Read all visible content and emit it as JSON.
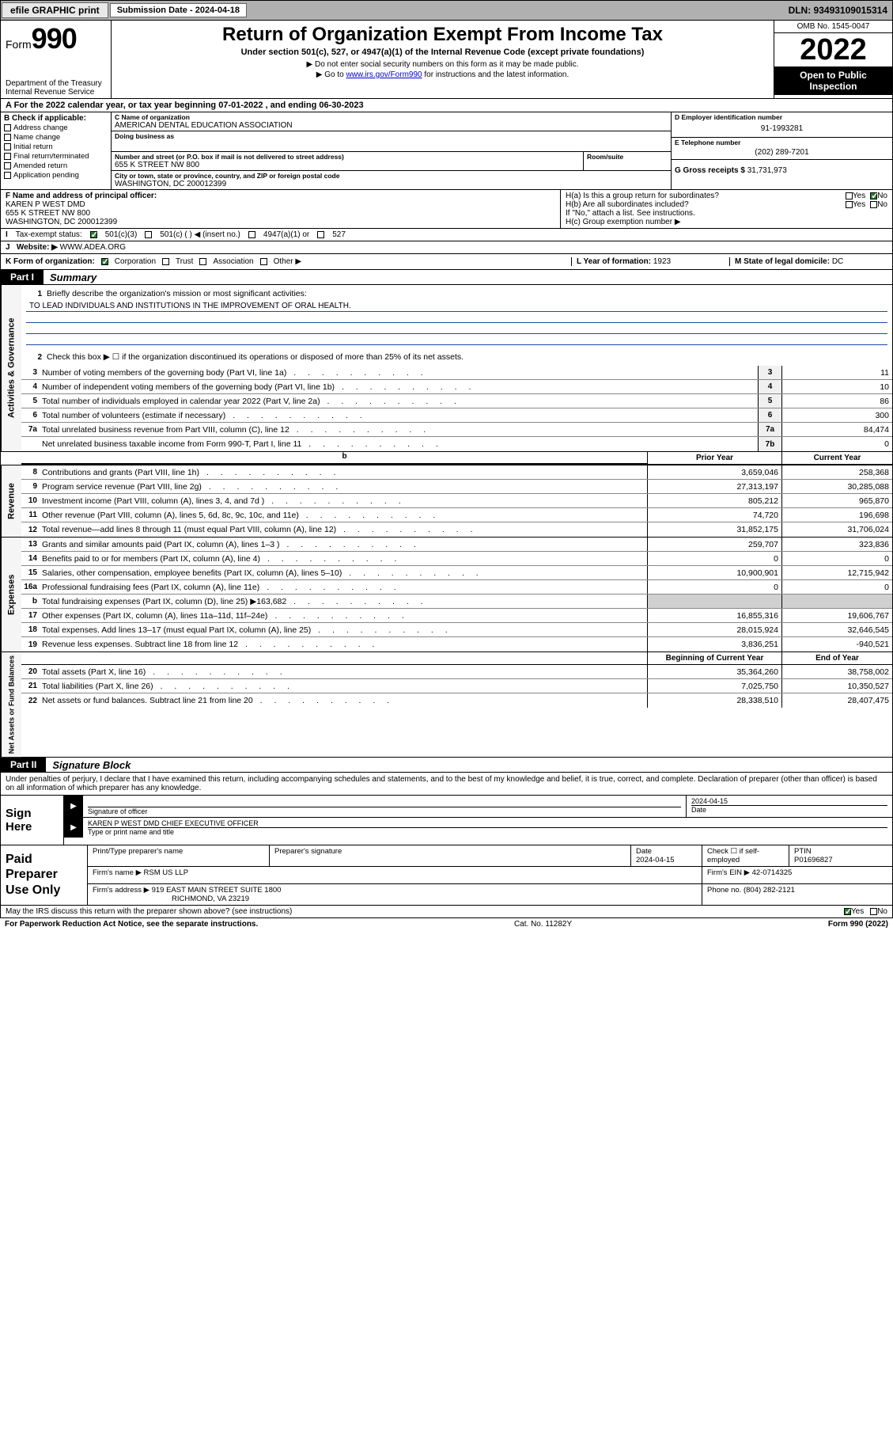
{
  "topbar": {
    "efile": "efile GRAPHIC print",
    "submission_label": "Submission Date - 2024-04-18",
    "dln": "DLN: 93493109015314"
  },
  "header": {
    "form_word": "Form",
    "form_num": "990",
    "dept": "Department of the Treasury",
    "irs": "Internal Revenue Service",
    "title": "Return of Organization Exempt From Income Tax",
    "sub1": "Under section 501(c), 527, or 4947(a)(1) of the Internal Revenue Code (except private foundations)",
    "sub2": "▶ Do not enter social security numbers on this form as it may be made public.",
    "sub3_pre": "▶ Go to ",
    "sub3_link": "www.irs.gov/Form990",
    "sub3_post": " for instructions and the latest information.",
    "omb": "OMB No. 1545-0047",
    "year": "2022",
    "open": "Open to Public Inspection"
  },
  "lineA": "A For the 2022 calendar year, or tax year beginning 07-01-2022    , and ending 06-30-2023",
  "colB": {
    "label": "B Check if applicable:",
    "items": [
      "Address change",
      "Name change",
      "Initial return",
      "Final return/terminated",
      "Amended return",
      "Application pending"
    ]
  },
  "colC": {
    "name_lbl": "C Name of organization",
    "name": "AMERICAN DENTAL EDUCATION ASSOCIATION",
    "dba_lbl": "Doing business as",
    "dba": "",
    "addr_lbl": "Number and street (or P.O. box if mail is not delivered to street address)",
    "room_lbl": "Room/suite",
    "addr": "655 K STREET NW 800",
    "city_lbl": "City or town, state or province, country, and ZIP or foreign postal code",
    "city": "WASHINGTON, DC  200012399"
  },
  "colDE": {
    "d_lbl": "D Employer identification number",
    "ein": "91-1993281",
    "e_lbl": "E Telephone number",
    "phone": "(202) 289-7201",
    "g_lbl": "G Gross receipts $",
    "gross": "31,731,973"
  },
  "rowF": {
    "f_lbl": "F Name and address of principal officer:",
    "name": "KAREN P WEST DMD",
    "addr1": "655 K STREET NW 800",
    "addr2": "WASHINGTON, DC  200012399",
    "ha": "H(a)  Is this a group return for subordinates?",
    "hb": "H(b)  Are all subordinates included?",
    "hb_note": "If \"No,\" attach a list. See instructions.",
    "hc": "H(c)  Group exemption number ▶",
    "yes": "Yes",
    "no": "No"
  },
  "rowI": {
    "label": "Tax-exempt status:",
    "opt1": "501(c)(3)",
    "opt2": "501(c) (  ) ◀ (insert no.)",
    "opt3": "4947(a)(1) or",
    "opt4": "527"
  },
  "rowJ": {
    "label": "Website: ▶",
    "value": "WWW.ADEA.ORG"
  },
  "rowK": {
    "label": "K Form of organization:",
    "opts": [
      "Corporation",
      "Trust",
      "Association",
      "Other ▶"
    ],
    "l_label": "L Year of formation: ",
    "l_val": "1923",
    "m_label": "M State of legal domicile: ",
    "m_val": "DC"
  },
  "part1": {
    "tab": "Part I",
    "title": "Summary"
  },
  "gov": {
    "label": "Activities & Governance",
    "q1": "Briefly describe the organization's mission or most significant activities:",
    "mission": "TO LEAD INDIVIDUALS AND INSTITUTIONS IN THE IMPROVEMENT OF ORAL HEALTH.",
    "q2": "Check this box ▶ ☐ if the organization discontinued its operations or disposed of more than 25% of its net assets.",
    "rows": [
      {
        "n": "3",
        "d": "Number of voting members of the governing body (Part VI, line 1a)",
        "box": "3",
        "v": "11"
      },
      {
        "n": "4",
        "d": "Number of independent voting members of the governing body (Part VI, line 1b)",
        "box": "4",
        "v": "10"
      },
      {
        "n": "5",
        "d": "Total number of individuals employed in calendar year 2022 (Part V, line 2a)",
        "box": "5",
        "v": "86"
      },
      {
        "n": "6",
        "d": "Total number of volunteers (estimate if necessary)",
        "box": "6",
        "v": "300"
      },
      {
        "n": "7a",
        "d": "Total unrelated business revenue from Part VIII, column (C), line 12",
        "box": "7a",
        "v": "84,474"
      },
      {
        "n": "",
        "d": "Net unrelated business taxable income from Form 990-T, Part I, line 11",
        "box": "7b",
        "v": "0"
      }
    ]
  },
  "twocol_hdr": {
    "prior": "Prior Year",
    "current": "Current Year"
  },
  "rev": {
    "label": "Revenue",
    "rows": [
      {
        "n": "8",
        "d": "Contributions and grants (Part VIII, line 1h)",
        "p": "3,659,046",
        "c": "258,368"
      },
      {
        "n": "9",
        "d": "Program service revenue (Part VIII, line 2g)",
        "p": "27,313,197",
        "c": "30,285,088"
      },
      {
        "n": "10",
        "d": "Investment income (Part VIII, column (A), lines 3, 4, and 7d )",
        "p": "805,212",
        "c": "965,870"
      },
      {
        "n": "11",
        "d": "Other revenue (Part VIII, column (A), lines 5, 6d, 8c, 9c, 10c, and 11e)",
        "p": "74,720",
        "c": "196,698"
      },
      {
        "n": "12",
        "d": "Total revenue—add lines 8 through 11 (must equal Part VIII, column (A), line 12)",
        "p": "31,852,175",
        "c": "31,706,024"
      }
    ]
  },
  "exp": {
    "label": "Expenses",
    "rows": [
      {
        "n": "13",
        "d": "Grants and similar amounts paid (Part IX, column (A), lines 1–3 )",
        "p": "259,707",
        "c": "323,836"
      },
      {
        "n": "14",
        "d": "Benefits paid to or for members (Part IX, column (A), line 4)",
        "p": "0",
        "c": "0"
      },
      {
        "n": "15",
        "d": "Salaries, other compensation, employee benefits (Part IX, column (A), lines 5–10)",
        "p": "10,900,901",
        "c": "12,715,942"
      },
      {
        "n": "16a",
        "d": "Professional fundraising fees (Part IX, column (A), line 11e)",
        "p": "0",
        "c": "0"
      },
      {
        "n": "b",
        "d": "Total fundraising expenses (Part IX, column (D), line 25) ▶163,682",
        "p": "",
        "c": "",
        "gray": true
      },
      {
        "n": "17",
        "d": "Other expenses (Part IX, column (A), lines 11a–11d, 11f–24e)",
        "p": "16,855,316",
        "c": "19,606,767"
      },
      {
        "n": "18",
        "d": "Total expenses. Add lines 13–17 (must equal Part IX, column (A), line 25)",
        "p": "28,015,924",
        "c": "32,646,545"
      },
      {
        "n": "19",
        "d": "Revenue less expenses. Subtract line 18 from line 12",
        "p": "3,836,251",
        "c": "-940,521"
      }
    ]
  },
  "net_hdr": {
    "begin": "Beginning of Current Year",
    "end": "End of Year"
  },
  "net": {
    "label": "Net Assets or Fund Balances",
    "rows": [
      {
        "n": "20",
        "d": "Total assets (Part X, line 16)",
        "p": "35,364,260",
        "c": "38,758,002"
      },
      {
        "n": "21",
        "d": "Total liabilities (Part X, line 26)",
        "p": "7,025,750",
        "c": "10,350,527"
      },
      {
        "n": "22",
        "d": "Net assets or fund balances. Subtract line 21 from line 20",
        "p": "28,338,510",
        "c": "28,407,475"
      }
    ]
  },
  "part2": {
    "tab": "Part II",
    "title": "Signature Block"
  },
  "sig": {
    "intro": "Under penalties of perjury, I declare that I have examined this return, including accompanying schedules and statements, and to the best of my knowledge and belief, it is true, correct, and complete. Declaration of preparer (other than officer) is based on all information of which preparer has any knowledge.",
    "sign_here": "Sign Here",
    "sig_officer_lbl": "Signature of officer",
    "date_lbl": "Date",
    "date": "2024-04-15",
    "name_title": "KAREN P WEST DMD CHIEF EXECUTIVE OFFICER",
    "type_lbl": "Type or print name and title"
  },
  "prep": {
    "label": "Paid Preparer Use Only",
    "h1": "Print/Type preparer's name",
    "h2": "Preparer's signature",
    "h3_lbl": "Date",
    "h3": "2024-04-15",
    "h4_lbl": "Check ☐ if self-employed",
    "h5_lbl": "PTIN",
    "ptin": "P01696827",
    "firm_name_lbl": "Firm's name    ▶",
    "firm_name": "RSM US LLP",
    "firm_ein_lbl": "Firm's EIN ▶",
    "firm_ein": "42-0714325",
    "firm_addr_lbl": "Firm's address ▶",
    "firm_addr1": "919 EAST MAIN STREET SUITE 1800",
    "firm_addr2": "RICHMOND, VA  23219",
    "phone_lbl": "Phone no.",
    "phone": "(804) 282-2121"
  },
  "footer": {
    "discuss": "May the IRS discuss this return with the preparer shown above? (see instructions)",
    "yes": "Yes",
    "no": "No",
    "paperwork": "For Paperwork Reduction Act Notice, see the separate instructions.",
    "cat": "Cat. No. 11282Y",
    "form": "Form 990 (2022)"
  }
}
